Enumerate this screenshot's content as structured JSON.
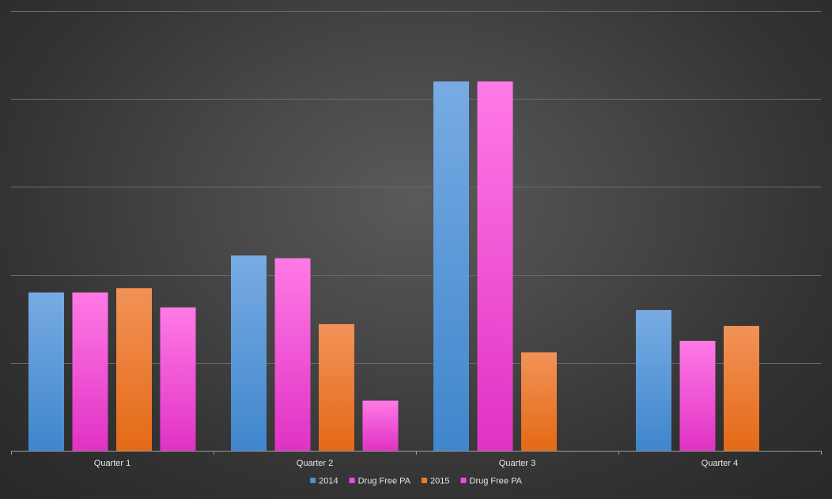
{
  "chart_data": {
    "type": "bar",
    "title": "",
    "xlabel": "",
    "ylabel": "",
    "categories": [
      "Quarter 1",
      "Quarter 2",
      "Quarter 3",
      "Quarter 4"
    ],
    "series": [
      {
        "name": "2014",
        "color": "#4a90d9",
        "values": [
          180,
          222,
          420,
          160
        ]
      },
      {
        "name": "Drug Free PA",
        "color": "#ff44dd",
        "values": [
          180,
          219,
          420,
          125
        ]
      },
      {
        "name": "2015",
        "color": "#f07a22",
        "values": [
          185,
          144,
          112,
          142
        ]
      },
      {
        "name": "Drug Free PA",
        "color": "#ff44dd",
        "values": [
          163,
          57,
          null,
          null
        ]
      }
    ],
    "ylim": [
      0,
      500
    ],
    "y_gridlines": [
      100,
      200,
      300,
      400,
      500
    ],
    "y_tick_labels_visible": false,
    "grid": true,
    "legend_position": "bottom"
  }
}
